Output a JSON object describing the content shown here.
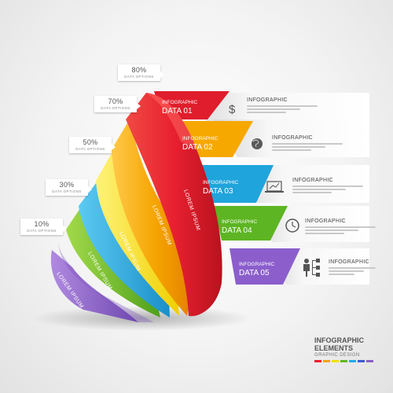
{
  "steps": [
    {
      "banner_title": "INFOGRAPHIC",
      "banner_data": "DATA 01",
      "color": "#e8202f",
      "percent": "80%",
      "percent_sub": "DATA OPTIONS",
      "ribbon_label": "LOREM IPSUM",
      "info_title": "INFOGRAPHIC",
      "icon": "dollar-icon"
    },
    {
      "banner_title": "INFOGRAPHIC",
      "banner_data": "DATA 02",
      "color": "#f5a400",
      "percent": "70%",
      "percent_sub": "DATA OPTIONS",
      "ribbon_label": "LOREM IPSUM",
      "info_title": "INFOGRAPHIC",
      "icon": "globe-icon"
    },
    {
      "banner_title": "INFOGRAPHIC",
      "banner_data": "DATA 03",
      "color": "#26a9e0",
      "percent": "50%",
      "percent_sub": "DATA OPTIONS",
      "ribbon_label": "LOREM IPSUM",
      "info_title": "INFOGRAPHIC",
      "icon": "laptop-chart-icon"
    },
    {
      "banner_title": "INFOGRAPHIC",
      "banner_data": "DATA 04",
      "color": "#5fb726",
      "percent": "30%",
      "percent_sub": "DATA OPTIONS",
      "ribbon_label": "LOREM IPSUM",
      "info_title": "INFOGRAPHIC",
      "icon": "clock-icon"
    },
    {
      "banner_title": "INFOGRAPHIC",
      "banner_data": "DATA 05",
      "color": "#8a5ec8",
      "percent": "10%",
      "percent_sub": "DATA OPTIONS",
      "ribbon_label": "LOREM IPSUM",
      "info_title": "INFOGRAPHIC",
      "icon": "org-chart-icon"
    }
  ],
  "footer": {
    "line1": "INFOGRAPHIC",
    "line2": "ELEMENTS",
    "line3": "GRAPHIC DESIGN"
  },
  "swatch_colors": [
    "#e8202f",
    "#f5a400",
    "#f0e000",
    "#5fb726",
    "#26a9e0",
    "#3b5bd6",
    "#8a5ec8"
  ]
}
